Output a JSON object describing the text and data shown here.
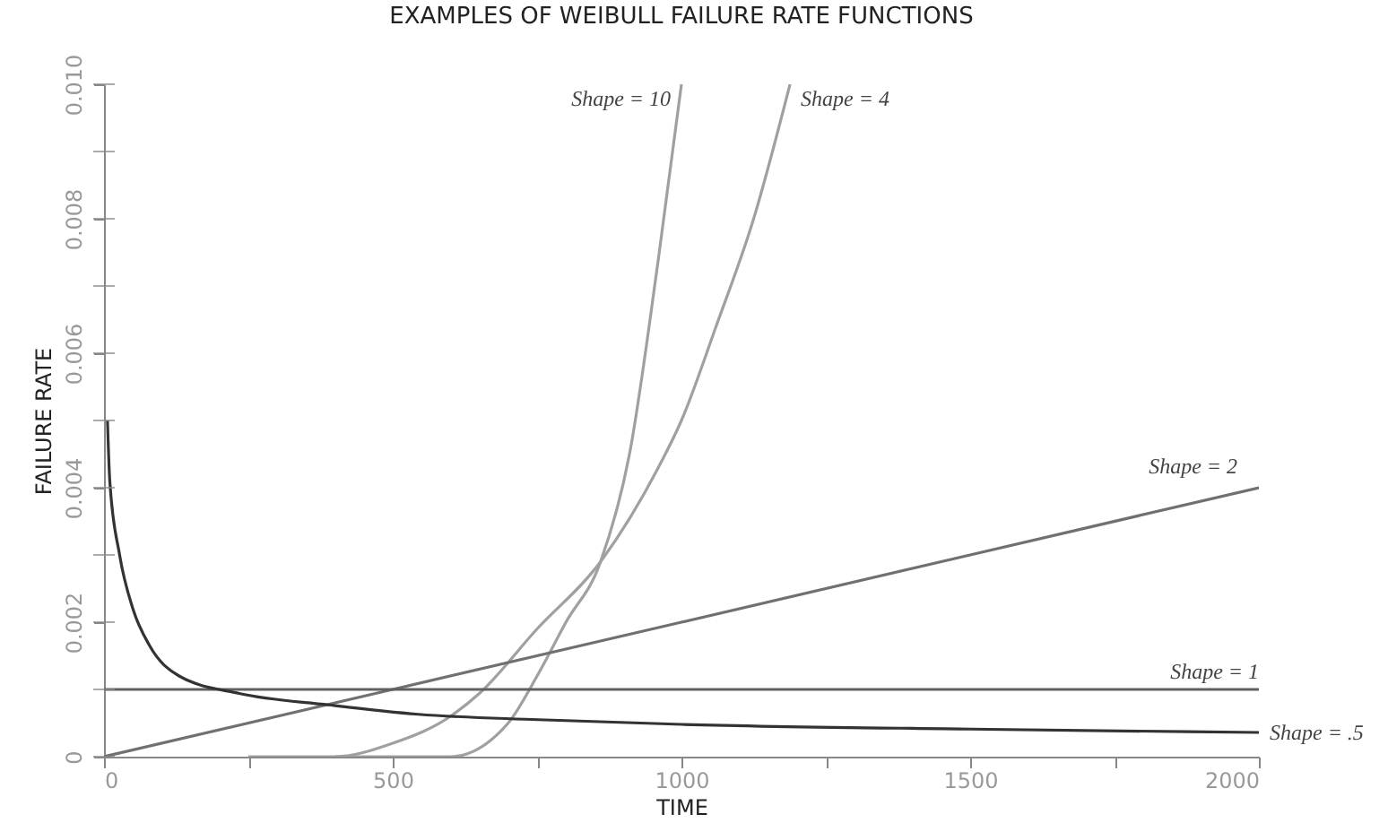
{
  "chart_data": {
    "type": "line",
    "title": "EXAMPLES OF WEIBULL FAILURE RATE FUNCTIONS",
    "xlabel": "TIME",
    "ylabel": "FAILURE RATE",
    "xlim": [
      0,
      2000
    ],
    "ylim": [
      0,
      0.01
    ],
    "xticks": [
      0,
      {
        "value": 250,
        "label": null
      },
      500,
      {
        "value": 750,
        "label": null
      },
      1000,
      {
        "value": 1250,
        "label": null
      },
      1500,
      {
        "value": 1750,
        "label": null
      },
      2000
    ],
    "yticks": [
      0,
      {
        "value": 0.001,
        "label": null
      },
      0.002,
      {
        "value": 0.003,
        "label": null
      },
      0.004,
      {
        "value": 0.005,
        "label": null
      },
      0.006,
      {
        "value": 0.007,
        "label": null
      },
      0.008,
      {
        "value": 0.009,
        "label": null
      },
      {
        "value": 0.01,
        "label": "0.010"
      }
    ],
    "grid": false,
    "legend": false,
    "marker": "none",
    "line_style": "solid",
    "series": [
      {
        "name": "Shape = 10",
        "color": "#a0a0a0",
        "x": [
          400,
          550,
          600,
          700,
          750,
          800,
          860,
          910,
          960,
          1000
        ],
        "values": [
          0,
          0,
          0,
          0.0005,
          0.0012,
          0.002,
          0.0029,
          0.0045,
          0.0074,
          0.01
        ]
      },
      {
        "name": "Shape = 4",
        "color": "#a0a0a0",
        "x": [
          250,
          400,
          500,
          600,
          650,
          750,
          860,
          960,
          1000,
          1060,
          1125,
          1188
        ],
        "values": [
          0,
          0,
          0.0002,
          0.0006,
          0.00094,
          0.0019,
          0.0029,
          0.0043,
          0.005,
          0.0064,
          0.008,
          0.01
        ]
      },
      {
        "name": "Shape = 2",
        "color": "#707070",
        "x": [
          0,
          1000,
          2000
        ],
        "values": [
          0,
          0.002,
          0.004
        ]
      },
      {
        "name": "Shape = 1",
        "color": "#606060",
        "x": [
          0,
          2000
        ],
        "values": [
          0.001,
          0.001
        ]
      },
      {
        "name": "Shape = .5",
        "color": "#333333",
        "x": [
          6,
          10,
          27,
          50,
          79,
          130,
          234,
          389,
          544,
          752,
          1000,
          1500,
          2000
        ],
        "values": [
          0.005,
          0.0041,
          0.003,
          0.0022,
          0.00165,
          0.0012,
          0.00094,
          0.00077,
          0.00063,
          0.00055,
          0.00048,
          0.00041,
          0.00036
        ]
      }
    ]
  }
}
